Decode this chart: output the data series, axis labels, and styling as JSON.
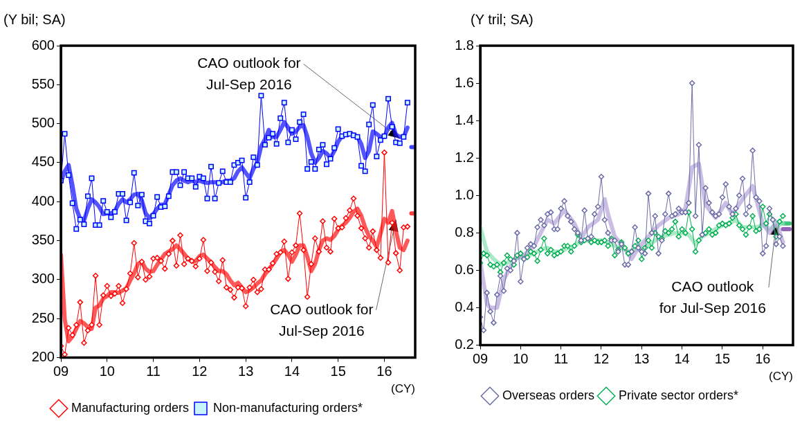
{
  "chart_data": [
    {
      "type": "line",
      "ylabel": "(Y bil; SA)",
      "xlabel": "(CY)",
      "legend": "bottom",
      "ylim": [
        200,
        600
      ],
      "yticks": [
        200,
        250,
        300,
        350,
        400,
        450,
        500,
        550,
        600
      ],
      "xlim": [
        "2009",
        "2016-09"
      ],
      "xticks": [
        {
          "value": "2009",
          "label": "09"
        },
        {
          "value": "2010",
          "label": "10"
        },
        {
          "value": "2011",
          "label": "11"
        },
        {
          "value": "2012",
          "label": "12"
        },
        {
          "value": "2013",
          "label": "13"
        },
        {
          "value": "2014",
          "label": "14"
        },
        {
          "value": "2015",
          "label": "15"
        },
        {
          "value": "2016",
          "label": "16"
        }
      ],
      "x": [
        "2009-01",
        "2009-02",
        "2009-03",
        "2009-04",
        "2009-05",
        "2009-06",
        "2009-07",
        "2009-08",
        "2009-09",
        "2009-10",
        "2009-11",
        "2009-12",
        "2010-01",
        "2010-02",
        "2010-03",
        "2010-04",
        "2010-05",
        "2010-06",
        "2010-07",
        "2010-08",
        "2010-09",
        "2010-10",
        "2010-11",
        "2010-12",
        "2011-01",
        "2011-02",
        "2011-03",
        "2011-04",
        "2011-05",
        "2011-06",
        "2011-07",
        "2011-08",
        "2011-09",
        "2011-10",
        "2011-11",
        "2011-12",
        "2012-01",
        "2012-02",
        "2012-03",
        "2012-04",
        "2012-05",
        "2012-06",
        "2012-07",
        "2012-08",
        "2012-09",
        "2012-10",
        "2012-11",
        "2012-12",
        "2013-01",
        "2013-02",
        "2013-03",
        "2013-04",
        "2013-05",
        "2013-06",
        "2013-07",
        "2013-08",
        "2013-09",
        "2013-10",
        "2013-11",
        "2013-12",
        "2014-01",
        "2014-02",
        "2014-03",
        "2014-04",
        "2014-05",
        "2014-06",
        "2014-07",
        "2014-08",
        "2014-09",
        "2014-10",
        "2014-11",
        "2014-12",
        "2015-01",
        "2015-02",
        "2015-03",
        "2015-04",
        "2015-05",
        "2015-06",
        "2015-07",
        "2015-08",
        "2015-09",
        "2015-10",
        "2015-11",
        "2015-12",
        "2016-01",
        "2016-02",
        "2016-03",
        "2016-04",
        "2016-05",
        "2016-06",
        "2016-07"
      ],
      "series": [
        {
          "color": "#ff2020",
          "marker": "none",
          "values": [
            332,
            249,
            221,
            227,
            237,
            247,
            244,
            239,
            237,
            264,
            267,
            276,
            279,
            284,
            284,
            283,
            286,
            289,
            299,
            308,
            320,
            323,
            314,
            310,
            311,
            319,
            326,
            333,
            336,
            339,
            344,
            339,
            333,
            327,
            323,
            324,
            330,
            332,
            327,
            322,
            316,
            311,
            311,
            307,
            299,
            293,
            296,
            290,
            284,
            286,
            290,
            295,
            299,
            307,
            313,
            320,
            327,
            335,
            338,
            332,
            323,
            332,
            344,
            344,
            329,
            311,
            320,
            338,
            350,
            353,
            351,
            356,
            364,
            369,
            373,
            379,
            387,
            391,
            382,
            367,
            356,
            350,
            342,
            359,
            378,
            373,
            388,
            362,
            341,
            338,
            350
          ]
        },
        {
          "color": "#1a1aff",
          "marker": "none",
          "values": [
            425,
            439,
            447,
            421,
            391,
            378,
            376,
            391,
            403,
            399,
            393,
            384,
            385,
            385,
            388,
            397,
            403,
            399,
            403,
            409,
            410,
            402,
            385,
            379,
            384,
            391,
            396,
            397,
            409,
            421,
            427,
            430,
            427,
            425,
            427,
            425,
            427,
            425,
            424,
            425,
            425,
            424,
            425,
            427,
            427,
            430,
            439,
            444,
            437,
            430,
            442,
            450,
            471,
            480,
            492,
            483,
            483,
            492,
            502,
            495,
            487,
            490,
            496,
            498,
            483,
            462,
            450,
            456,
            465,
            462,
            456,
            465,
            477,
            484,
            486,
            487,
            486,
            483,
            474,
            456,
            465,
            490,
            487,
            483,
            483,
            495,
            501,
            486,
            483,
            483,
            495
          ]
        },
        {
          "name": "Manufacturing orders",
          "color": "#ff0000",
          "marker": "diamond",
          "values": [
            215,
            204,
            238,
            229,
            242,
            271,
            219,
            235,
            242,
            305,
            242,
            280,
            292,
            279,
            282,
            292,
            270,
            288,
            308,
            347,
            303,
            323,
            300,
            304,
            327,
            328,
            324,
            314,
            333,
            350,
            318,
            357,
            320,
            327,
            324,
            317,
            327,
            351,
            311,
            322,
            310,
            298,
            325,
            290,
            287,
            277,
            290,
            289,
            266,
            290,
            300,
            284,
            288,
            313,
            313,
            321,
            333,
            335,
            349,
            301,
            335,
            344,
            385,
            338,
            278,
            320,
            353,
            336,
            375,
            341,
            336,
            378,
            366,
            367,
            379,
            389,
            404,
            382,
            366,
            353,
            341,
            362,
            338,
            328,
            463,
            322,
            373,
            334,
            312,
            367,
            368
          ]
        },
        {
          "name": "Non-manufacturing orders*",
          "color": "#0000ff",
          "marker": "square",
          "values": [
            427,
            487,
            434,
            398,
            365,
            377,
            371,
            407,
            430,
            370,
            370,
            401,
            387,
            380,
            387,
            410,
            410,
            376,
            399,
            437,
            395,
            409,
            375,
            372,
            382,
            406,
            393,
            394,
            407,
            438,
            438,
            421,
            438,
            430,
            430,
            419,
            432,
            430,
            404,
            445,
            404,
            424,
            439,
            425,
            425,
            447,
            450,
            453,
            405,
            425,
            457,
            447,
            536,
            473,
            482,
            487,
            474,
            507,
            527,
            476,
            492,
            480,
            502,
            512,
            442,
            451,
            442,
            467,
            473,
            448,
            455,
            469,
            493,
            484,
            486,
            487,
            485,
            483,
            446,
            439,
            499,
            524,
            458,
            479,
            484,
            532,
            496,
            476,
            475,
            483,
            527
          ]
        },
        {
          "color": "#ff0000",
          "marker": "none",
          "x": [
            "2016-08",
            "2016-09"
          ],
          "values": [
            385,
            385
          ]
        },
        {
          "color": "#0000ff",
          "marker": "none",
          "x": [
            "2016-08",
            "2016-09"
          ],
          "values": [
            470,
            470
          ]
        }
      ],
      "annotations": [
        {
          "text": "CAO outlook for\nJul-Sep 2016",
          "x": "2016-05",
          "y": 481
        },
        {
          "text": "CAO outlook for\nJul-Sep 2016",
          "x": "2016-04",
          "y": 377
        }
      ]
    },
    {
      "type": "line",
      "ylabel": "(Y tril; SA)",
      "xlabel": "(CY)",
      "legend": "bottom",
      "ylim": [
        0.2,
        1.8
      ],
      "yticks": [
        0.2,
        0.4,
        0.6,
        0.8,
        {
          "value": 1,
          "label": "1.0"
        },
        1.2,
        1.4,
        1.6,
        1.8
      ],
      "xlim": [
        "2009",
        "2016-10"
      ],
      "xticks": [
        {
          "value": "2009",
          "label": "09"
        },
        {
          "value": "2010",
          "label": "10"
        },
        {
          "value": "2011",
          "label": "11"
        },
        {
          "value": "2012",
          "label": "12"
        },
        {
          "value": "2013",
          "label": "13"
        },
        {
          "value": "2014",
          "label": "14"
        },
        {
          "value": "2015",
          "label": "15"
        },
        {
          "value": "2016",
          "label": "16"
        }
      ],
      "x": [
        "2009-01",
        "2009-02",
        "2009-03",
        "2009-04",
        "2009-05",
        "2009-06",
        "2009-07",
        "2009-08",
        "2009-09",
        "2009-10",
        "2009-11",
        "2009-12",
        "2010-01",
        "2010-02",
        "2010-03",
        "2010-04",
        "2010-05",
        "2010-06",
        "2010-07",
        "2010-08",
        "2010-09",
        "2010-10",
        "2010-11",
        "2010-12",
        "2011-01",
        "2011-02",
        "2011-03",
        "2011-04",
        "2011-05",
        "2011-06",
        "2011-07",
        "2011-08",
        "2011-09",
        "2011-10",
        "2011-11",
        "2011-12",
        "2012-01",
        "2012-02",
        "2012-03",
        "2012-04",
        "2012-05",
        "2012-06",
        "2012-07",
        "2012-08",
        "2012-09",
        "2012-10",
        "2012-11",
        "2012-12",
        "2013-01",
        "2013-02",
        "2013-03",
        "2013-04",
        "2013-05",
        "2013-06",
        "2013-07",
        "2013-08",
        "2013-09",
        "2013-10",
        "2013-11",
        "2013-12",
        "2014-01",
        "2014-02",
        "2014-03",
        "2014-04",
        "2014-05",
        "2014-06",
        "2014-07",
        "2014-08",
        "2014-09",
        "2014-10",
        "2014-11",
        "2014-12",
        "2015-01",
        "2015-02",
        "2015-03",
        "2015-04",
        "2015-05",
        "2015-06",
        "2015-07",
        "2015-08",
        "2015-09",
        "2015-10",
        "2015-11",
        "2015-12",
        "2016-01",
        "2016-02",
        "2016-03",
        "2016-04",
        "2016-05",
        "2016-06",
        "2016-07"
      ],
      "series": [
        {
          "color": "#b8a8d8",
          "marker": "none",
          "x": [
            "2009-01",
            "2009-03",
            "2009-04",
            "2009-06",
            "2009-08",
            "2009-10",
            "2009-12",
            "2010-02",
            "2010-05",
            "2010-07",
            "2010-09",
            "2010-11",
            "2011-02",
            "2011-05",
            "2011-07",
            "2011-09",
            "2011-12",
            "2012-02",
            "2012-03",
            "2012-05",
            "2012-08",
            "2012-10",
            "2012-12",
            "2013-04",
            "2013-06",
            "2013-09",
            "2013-12",
            "2014-02",
            "2014-04",
            "2014-06",
            "2014-08",
            "2014-11",
            "2015-02",
            "2015-04",
            "2015-07",
            "2015-10",
            "2016-01",
            "2016-03",
            "2016-05",
            "2016-07"
          ],
          "values": [
            0.65,
            0.42,
            0.4,
            0.4,
            0.55,
            0.62,
            0.67,
            0.68,
            0.73,
            0.8,
            0.87,
            0.85,
            0.92,
            0.85,
            0.77,
            0.83,
            0.87,
            0.98,
            0.9,
            0.78,
            0.72,
            0.66,
            0.72,
            0.8,
            0.84,
            0.88,
            0.9,
            0.93,
            1.15,
            1.17,
            0.95,
            0.88,
            0.96,
            0.9,
            0.98,
            1.05,
            0.85,
            0.8,
            0.86,
            0.75
          ]
        },
        {
          "color": "#8ee0b4",
          "marker": "none",
          "x": [
            "2009-01",
            "2009-03",
            "2009-05",
            "2009-07",
            "2009-09",
            "2009-11",
            "2010-01",
            "2010-03",
            "2010-05",
            "2010-07",
            "2010-09",
            "2010-11",
            "2011-01",
            "2011-03",
            "2011-05",
            "2011-07",
            "2011-09",
            "2011-11",
            "2012-01",
            "2012-03",
            "2012-05",
            "2012-07",
            "2012-09",
            "2012-11",
            "2013-01",
            "2013-03",
            "2013-05",
            "2013-07",
            "2013-09",
            "2013-11",
            "2014-01",
            "2014-03",
            "2014-05",
            "2014-07",
            "2014-09",
            "2014-11",
            "2015-01",
            "2015-03",
            "2015-05",
            "2015-07",
            "2015-09",
            "2015-11",
            "2016-01",
            "2016-03",
            "2016-05",
            "2016-07"
          ],
          "values": [
            0.83,
            0.7,
            0.66,
            0.63,
            0.64,
            0.66,
            0.67,
            0.68,
            0.69,
            0.71,
            0.72,
            0.7,
            0.7,
            0.72,
            0.73,
            0.76,
            0.76,
            0.76,
            0.76,
            0.75,
            0.73,
            0.72,
            0.7,
            0.71,
            0.72,
            0.73,
            0.76,
            0.78,
            0.79,
            0.8,
            0.8,
            0.79,
            0.74,
            0.78,
            0.8,
            0.82,
            0.84,
            0.85,
            0.87,
            0.83,
            0.83,
            0.83,
            0.84,
            0.82,
            0.84,
            0.85
          ]
        },
        {
          "name": "Overseas orders",
          "color": "#6b6ba8",
          "marker": "diamond",
          "values": [
            0.35,
            0.28,
            0.48,
            0.38,
            0.32,
            0.47,
            0.57,
            0.49,
            0.61,
            0.6,
            0.65,
            0.8,
            0.54,
            0.66,
            0.72,
            0.74,
            0.73,
            0.83,
            0.87,
            0.84,
            0.9,
            0.91,
            0.82,
            0.82,
            0.93,
            0.97,
            0.89,
            0.86,
            0.82,
            0.8,
            0.76,
            0.92,
            0.77,
            0.78,
            0.9,
            0.94,
            1.1,
            0.87,
            0.8,
            0.76,
            0.76,
            0.7,
            0.74,
            0.63,
            0.63,
            0.7,
            0.83,
            0.72,
            0.7,
            0.69,
            1.01,
            0.8,
            0.89,
            0.69,
            0.76,
            0.9,
            1.01,
            0.89,
            0.9,
            0.93,
            0.91,
            0.91,
            0.96,
            1.6,
            0.89,
            1.27,
            0.79,
            1.04,
            0.96,
            0.91,
            0.89,
            0.9,
            0.99,
            1.06,
            0.94,
            0.9,
            0.93,
            1,
            1.09,
            0.9,
            0.94,
            1.24,
            0.99,
            0.97,
            0.69,
            0.73,
            0.93,
            0.87,
            0.74,
            0.78,
            0.73
          ]
        },
        {
          "name": "Private sector orders*",
          "color": "#00b050",
          "marker": "diamond",
          "values": [
            0.64,
            0.69,
            0.68,
            0.63,
            0.62,
            0.63,
            0.59,
            0.64,
            0.68,
            0.66,
            0.63,
            0.68,
            0.69,
            0.66,
            0.67,
            0.7,
            0.69,
            0.65,
            0.71,
            0.77,
            0.69,
            0.71,
            0.68,
            0.69,
            0.7,
            0.73,
            0.73,
            0.7,
            0.73,
            0.79,
            0.75,
            0.76,
            0.77,
            0.75,
            0.76,
            0.75,
            0.75,
            0.76,
            0.73,
            0.77,
            0.68,
            0.71,
            0.75,
            0.72,
            0.69,
            0.7,
            0.73,
            0.76,
            0.66,
            0.72,
            0.76,
            0.72,
            0.8,
            0.78,
            0.77,
            0.81,
            0.8,
            0.82,
            0.86,
            0.78,
            0.82,
            0.8,
            0.91,
            0.82,
            0.7,
            0.76,
            0.79,
            0.8,
            0.82,
            0.79,
            0.8,
            0.84,
            0.85,
            0.84,
            0.85,
            0.88,
            0.9,
            0.84,
            0.82,
            0.79,
            0.83,
            0.89,
            0.81,
            0.82,
            0.94,
            0.85,
            0.9,
            0.87,
            0.78,
            0.86,
            0.89
          ]
        },
        {
          "color": "#00b050",
          "marker": "none",
          "x": [
            "2016-07",
            "2016-09"
          ],
          "values": [
            0.85,
            0.85
          ]
        },
        {
          "color": "#7030a0",
          "marker": "none",
          "x": [
            "2016-07",
            "2016-09"
          ],
          "values": [
            0.82,
            0.82
          ]
        }
      ],
      "annotations": [
        {
          "text": "CAO outlook\nfor Jul-Sep 2016",
          "x": "2016-05",
          "y": 0.85
        }
      ]
    }
  ]
}
